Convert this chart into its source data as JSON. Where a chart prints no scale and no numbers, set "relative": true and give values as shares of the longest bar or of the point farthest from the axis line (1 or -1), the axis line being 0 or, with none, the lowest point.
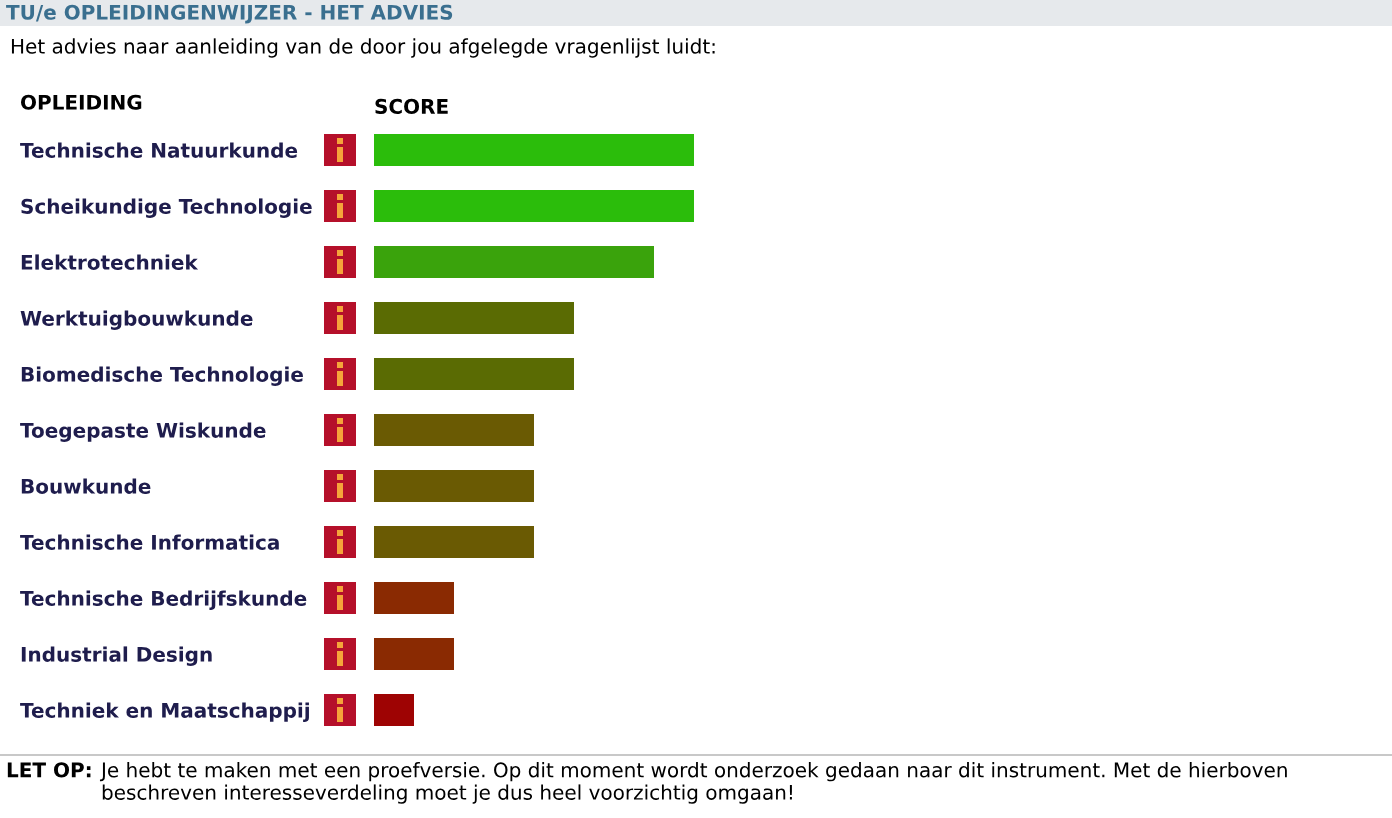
{
  "chart_data": {
    "type": "bar",
    "orientation": "horizontal",
    "relative": true,
    "title": "TU/e OPLEIDINGENWIJZER - HET ADVIES",
    "subtitle": "Het advies naar aanleiding van de door jou afgelegde vragenlijst luidt:",
    "ylabel": "OPLEIDING",
    "xlabel": "SCORE",
    "categories": [
      "Technische Natuurkunde",
      "Scheikundige Technologie",
      "Elektrotechniek",
      "Werktuigbouwkunde",
      "Biomedische Technologie",
      "Toegepaste Wiskunde",
      "Bouwkunde",
      "Technische Informatica",
      "Technische Bedrijfskunde",
      "Industrial Design",
      "Techniek en Maatschappij"
    ],
    "values": [
      1,
      1,
      0.875,
      0.625,
      0.625,
      0.5,
      0.5,
      0.5,
      0.25,
      0.25,
      0.125
    ],
    "colors": [
      "#2bbd0b",
      "#2bbd0b",
      "#3aa30c",
      "#5a6b03",
      "#5a6b03",
      "#6a5a03",
      "#6a5a03",
      "#6a5a03",
      "#8a2a02",
      "#8a2a02",
      "#9e0303"
    ],
    "annotations": [
      "LET OP:",
      "Je hebt te maken met een proefversie. Op dit moment wordt onderzoek gedaan naar dit instrument. Met de hierboven beschreven interesseverdeling moet je dus heel voorzichtig omgaan!"
    ]
  }
}
